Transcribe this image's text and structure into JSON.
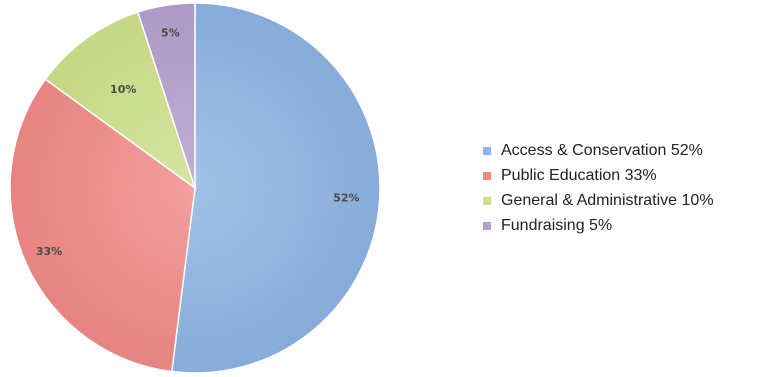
{
  "chart_data": {
    "type": "pie",
    "title": "",
    "slices": [
      {
        "label": "Access & Conservation",
        "value": 52,
        "data_label": "52%",
        "color": "#8db3e2",
        "legend": "Access & Conservation 52%"
      },
      {
        "label": "Public Education",
        "value": 33,
        "data_label": "33%",
        "color": "#f08a86",
        "legend": "Public Education 33%"
      },
      {
        "label": "General & Administrative",
        "value": 10,
        "data_label": "10%",
        "color": "#cce08a",
        "legend": "General & Administrative 10%"
      },
      {
        "label": "Fundraising",
        "value": 5,
        "data_label": "5%",
        "color": "#b39fcd",
        "legend": "Fundraising 5%"
      }
    ],
    "start_angle": "12 o'clock",
    "direction": "clockwise",
    "legend_position": "right"
  }
}
